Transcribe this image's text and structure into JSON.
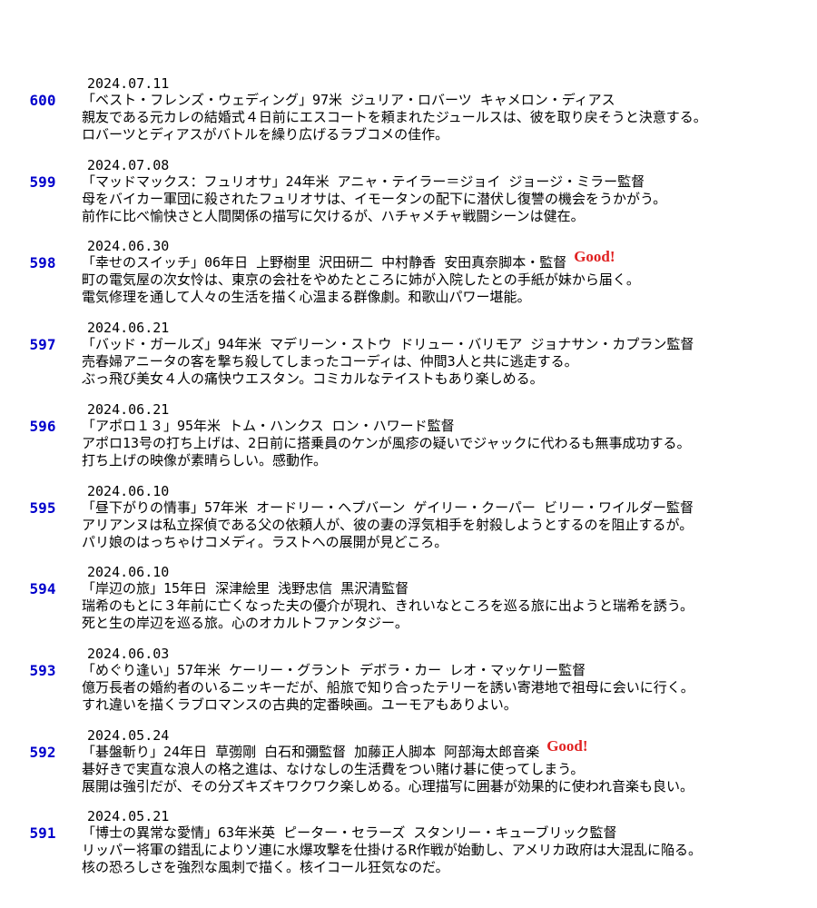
{
  "entries": [
    {
      "number": "600",
      "date": "2024.07.11",
      "title": "「ベスト・フレンズ・ウェディング」97米 ジュリア・ロバーツ キャメロン・ディアス",
      "lines": [
        "親友である元カレの結婚式４日前にエスコートを頼まれたジュールスは、彼を取り戻そうと決意する。",
        "ロバーツとディアスがバトルを繰り広げるラブコメの佳作。"
      ]
    },
    {
      "number": "599",
      "date": "2024.07.08",
      "title": "「マッドマックス：フュリオサ」24年米 アニャ・テイラー＝ジョイ ジョージ・ミラー監督",
      "lines": [
        "母をバイカー軍団に殺されたフュリオサは、イモータンの配下に潜伏し復讐の機会をうかがう。",
        "前作に比べ愉快さと人間関係の描写に欠けるが、ハチャメチャ戦闘シーンは健在。"
      ]
    },
    {
      "number": "598",
      "date": "2024.06.30",
      "title": "「幸せのスイッチ」06年日 上野樹里 沢田研二 中村静香 安田真奈脚本・監督",
      "badge": "Good!",
      "lines": [
        "町の電気屋の次女怜は、東京の会社をやめたところに姉が入院したとの手紙が妹から届く。",
        "電気修理を通して人々の生活を描く心温まる群像劇。和歌山パワー堪能。"
      ]
    },
    {
      "number": "597",
      "date": "2024.06.21",
      "title": "「バッド・ガールズ」94年米 マデリーン・ストウ ドリュー・バリモア ジョナサン・カプラン監督",
      "lines": [
        "売春婦アニータの客を撃ち殺してしまったコーディは、仲間3人と共に逃走する。",
        "ぶっ飛び美女４人の痛快ウエスタン。コミカルなテイストもあり楽しめる。"
      ]
    },
    {
      "number": "596",
      "date": "2024.06.21",
      "title": "「アポロ１３」95年米 トム・ハンクス ロン・ハワード監督",
      "lines": [
        "アポロ13号の打ち上げは、2日前に搭乗員のケンが風疹の疑いでジャックに代わるも無事成功する。",
        "打ち上げの映像が素晴らしい。感動作。"
      ]
    },
    {
      "number": "595",
      "date": "2024.06.10",
      "title": "「昼下がりの情事」57年米 オードリー・ヘプバーン ゲイリー・クーパー ビリー・ワイルダー監督",
      "lines": [
        "アリアンヌは私立探偵である父の依頼人が、彼の妻の浮気相手を射殺しようとするのを阻止するが。",
        "パリ娘のはっちゃけコメディ。ラストへの展開が見どころ。"
      ]
    },
    {
      "number": "594",
      "date": "2024.06.10",
      "title": "「岸辺の旅」15年日 深津絵里 浅野忠信 黒沢清監督",
      "lines": [
        "瑞希のもとに３年前に亡くなった夫の優介が現れ、きれいなところを巡る旅に出ようと瑞希を誘う。",
        "死と生の岸辺を巡る旅。心のオカルトファンタジー。"
      ]
    },
    {
      "number": "593",
      "date": "2024.06.03",
      "title": "「めぐり逢い」57年米 ケーリー・グラント デボラ・カー レオ・マッケリー監督",
      "lines": [
        "億万長者の婚約者のいるニッキーだが、船旅で知り合ったテリーを誘い寄港地で祖母に会いに行く。",
        "すれ違いを描くラブロマンスの古典的定番映画。ユーモアもありよい。"
      ]
    },
    {
      "number": "592",
      "date": "2024.05.24",
      "title": "「碁盤斬り」24年日 草彅剛 白石和彌監督 加藤正人脚本 阿部海太郎音楽",
      "badge": "Good!",
      "lines": [
        "碁好きで実直な浪人の格之進は、なけなしの生活費をつい賭け碁に使ってしまう。",
        "展開は強引だが、その分ズキズキワクワク楽しめる。心理描写に囲碁が効果的に使われ音楽も良い。"
      ]
    },
    {
      "number": "591",
      "date": "2024.05.21",
      "title": "「博士の異常な愛情」63年米英 ピーター・セラーズ スタンリー・キューブリック監督",
      "lines": [
        "リッパー将軍の錯乱によりソ連に水爆攻撃を仕掛けるR作戦が始動し、アメリカ政府は大混乱に陥る。",
        "核の恐ろしさを強烈な風刺で描く。核イコール狂気なのだ。"
      ]
    }
  ]
}
